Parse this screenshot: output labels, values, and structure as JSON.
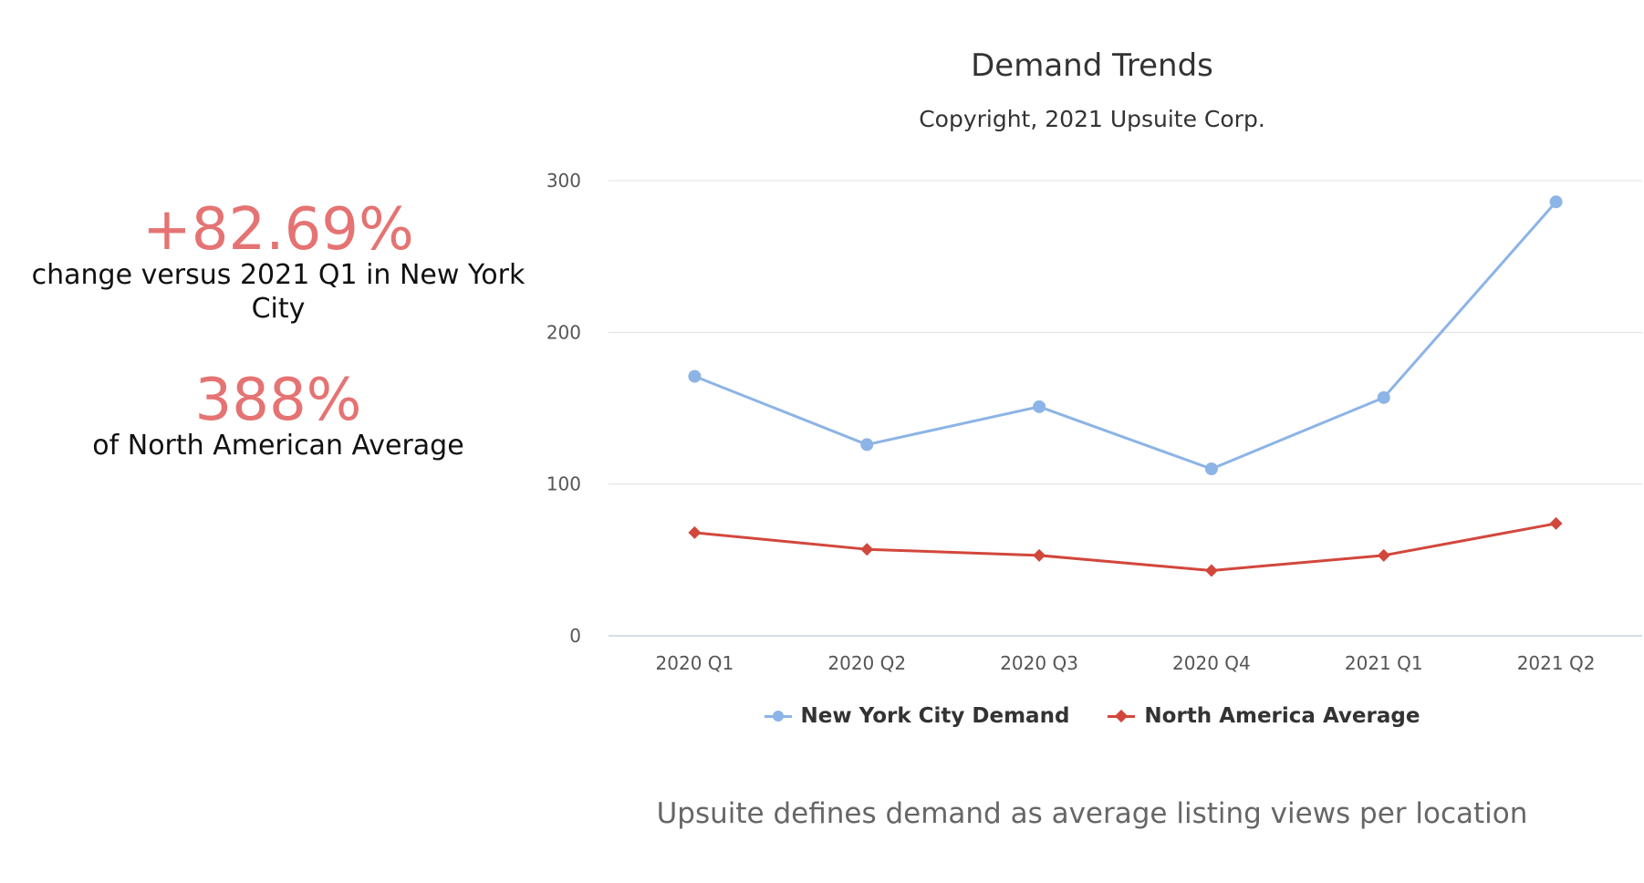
{
  "stats": [
    {
      "value": "+82.69%",
      "label": "change versus 2021 Q1 in New York City"
    },
    {
      "value": "388%",
      "label": "of North American Average"
    }
  ],
  "colors": {
    "accent": "#e57373",
    "series_nyc": "#8cb4e6",
    "series_na": "#d2473c",
    "grid": "#e0e0e0",
    "axis": "#c8d2dc"
  },
  "legend": {
    "items": [
      {
        "name": "New York City Demand",
        "marker": "circle"
      },
      {
        "name": "North America Average",
        "marker": "diamond"
      }
    ]
  },
  "footnote": "Upsuite defines demand as average listing views per location",
  "chart_data": {
    "type": "line",
    "title": "Demand Trends",
    "subtitle": "Copyright, 2021 Upsuite Corp.",
    "xlabel": "",
    "ylabel": "",
    "categories": [
      "2020 Q1",
      "2020 Q2",
      "2020 Q3",
      "2020 Q4",
      "2021 Q1",
      "2021 Q2"
    ],
    "ylim": [
      0,
      300
    ],
    "yticks": [
      0,
      100,
      200,
      300
    ],
    "grid": true,
    "legend_position": "bottom",
    "series": [
      {
        "name": "New York City Demand",
        "marker": "circle",
        "values": [
          171,
          126,
          151,
          110,
          157,
          286
        ]
      },
      {
        "name": "North America Average",
        "marker": "diamond",
        "values": [
          68,
          57,
          53,
          43,
          53,
          74
        ]
      }
    ]
  }
}
